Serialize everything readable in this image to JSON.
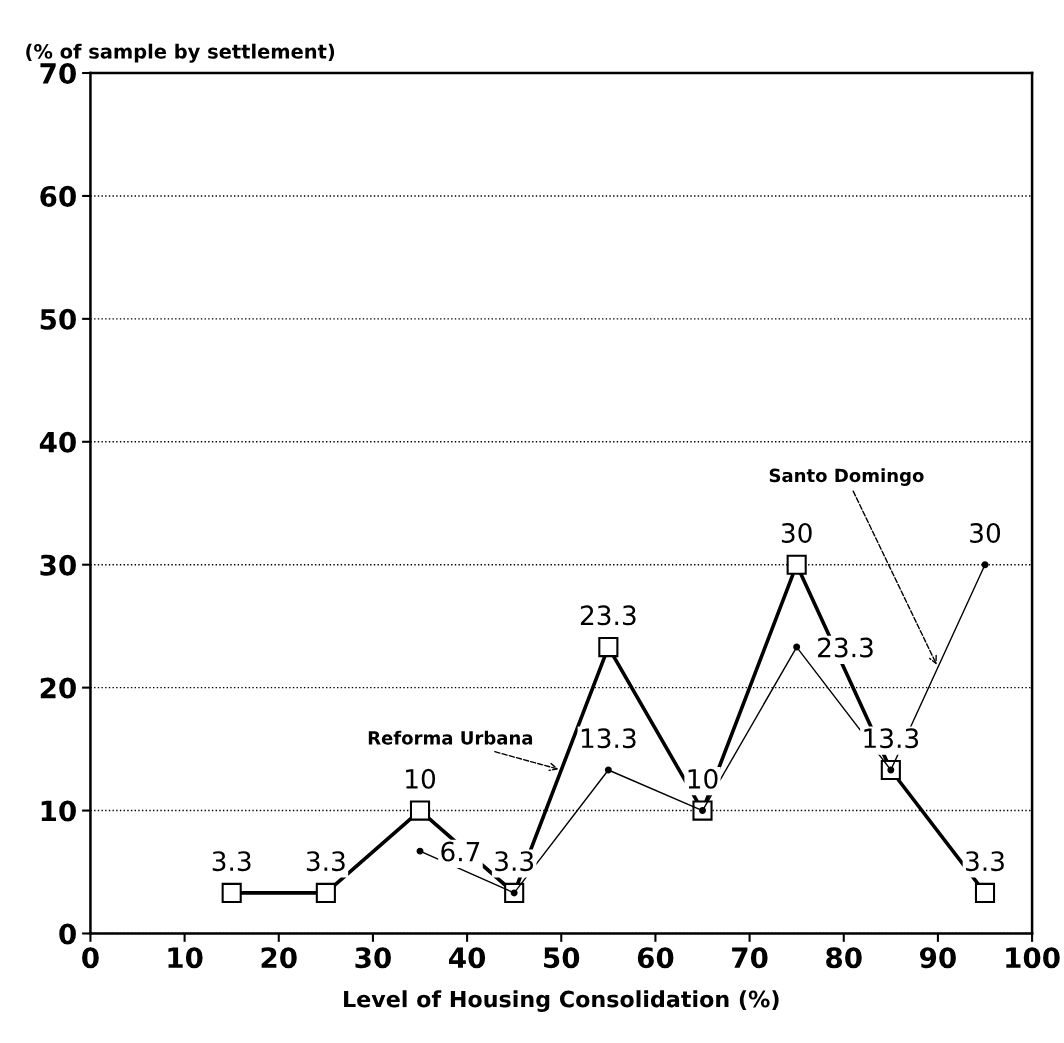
{
  "chart_data": {
    "type": "line",
    "xlabel": "Level of Housing Consolidation (%)",
    "ylabel": "(% of sample by settlement)",
    "x": [
      15,
      25,
      35,
      45,
      55,
      65,
      75,
      85,
      95
    ],
    "series": [
      {
        "name": "Reforma Urbana",
        "color": "#000000",
        "marker": "square",
        "values": [
          3.3,
          3.3,
          10,
          3.3,
          23.3,
          10,
          30,
          13.3,
          3.3
        ],
        "value_labels": [
          "3.3",
          "3.3",
          "10",
          "3.3",
          "23.3",
          "10",
          "30",
          "13.3",
          "3.3"
        ]
      },
      {
        "name": "Santo Domingo",
        "color": "#000000",
        "marker": "circle",
        "values": [
          null,
          null,
          6.7,
          3.3,
          13.3,
          10,
          23.3,
          13.3,
          30
        ],
        "value_labels": [
          null,
          null,
          "6.7",
          null,
          "13.3",
          null,
          "23.3",
          null,
          "30"
        ]
      }
    ],
    "xlim": [
      0,
      100
    ],
    "xticks": [
      0,
      10,
      20,
      30,
      40,
      50,
      60,
      70,
      80,
      90,
      100
    ],
    "ylim": [
      0,
      70
    ],
    "yticks": [
      0,
      10,
      20,
      30,
      40,
      50,
      60,
      70
    ],
    "grid": "y",
    "legend": false,
    "line_style": "solid"
  }
}
